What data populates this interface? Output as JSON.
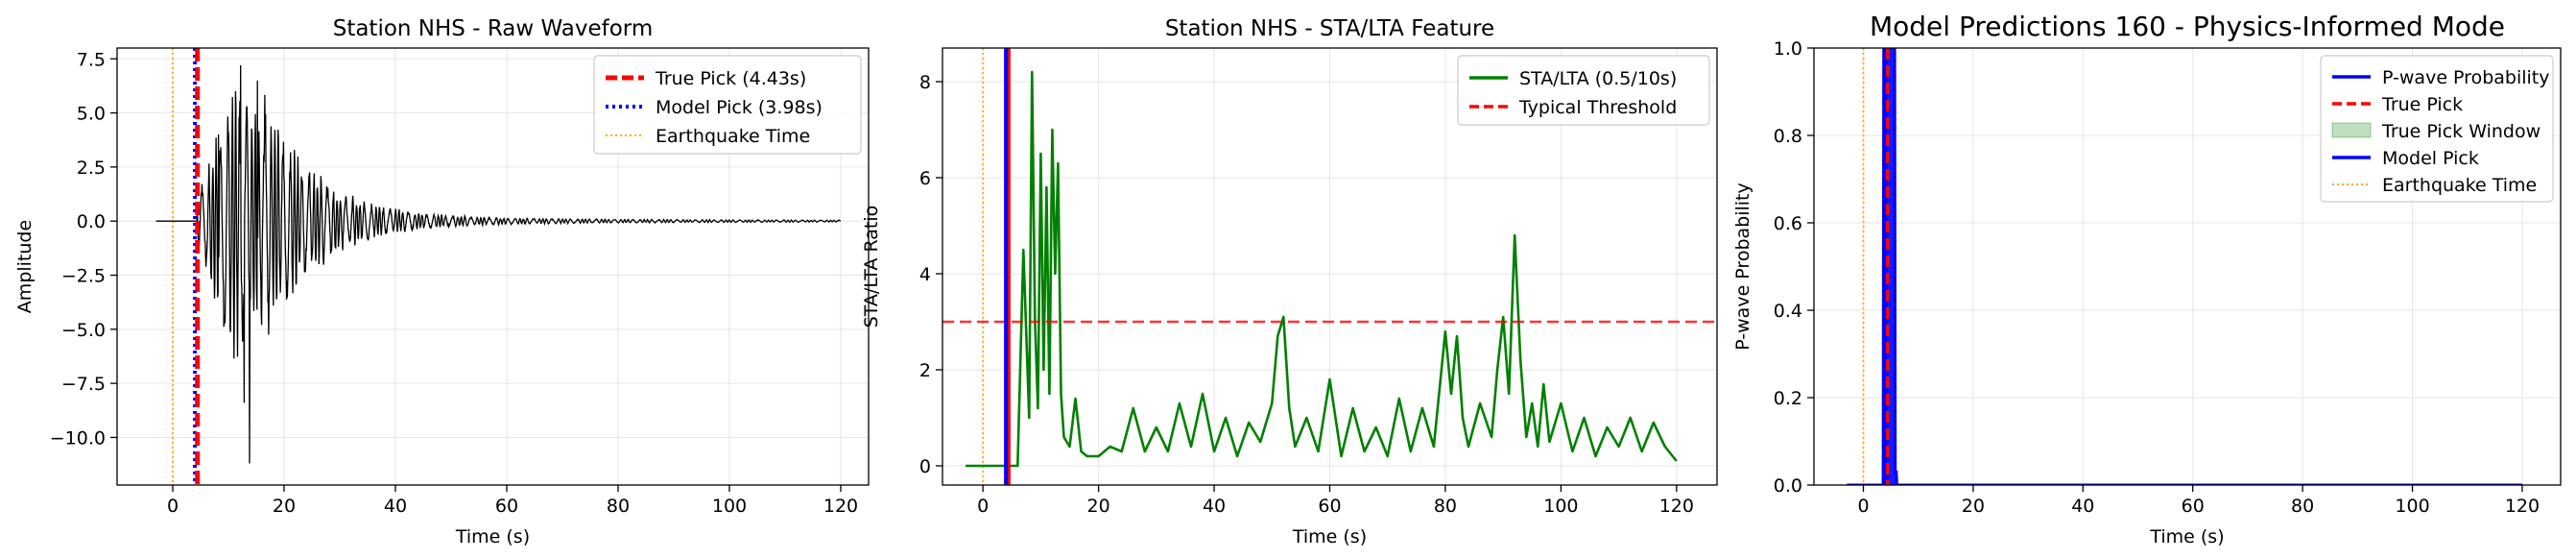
{
  "chart_data": [
    {
      "type": "line",
      "title": "Station NHS - Raw Waveform",
      "xlabel": "Time (s)",
      "ylabel": "Amplitude",
      "xlim": [
        -10,
        125
      ],
      "ylim": [
        -12.2,
        8.0
      ],
      "xticks": [
        0,
        20,
        40,
        60,
        80,
        100,
        120
      ],
      "xtick_labels": [
        "0",
        "20",
        "40",
        "60",
        "80",
        "100",
        "120"
      ],
      "yticks": [
        -10,
        -7.5,
        -5,
        -2.5,
        0,
        2.5,
        5,
        7.5
      ],
      "ytick_labels": [
        "−10.0",
        "−7.5",
        "−5.0",
        "−2.5",
        "0.0",
        "2.5",
        "5.0",
        "7.5"
      ],
      "grid": true,
      "legend_position": "top-right",
      "waveform": {
        "color": "#000000",
        "x_start": -3,
        "x_end": 120,
        "onset": 4.4,
        "peaks": [
          [
            8.2,
            4.0
          ],
          [
            11.3,
            6.0
          ],
          [
            12.2,
            7.2
          ],
          [
            13.8,
            -11.2
          ],
          [
            12.8,
            -8.4
          ],
          [
            15.2,
            6.5
          ],
          [
            16.0,
            -4.8
          ]
        ],
        "note_peaks_are_max_abs_excursion_time_value": true
      },
      "series": [
        {
          "name": "True Pick (4.43s)",
          "x": 4.43,
          "style": "dashed",
          "color": "#ff0000"
        },
        {
          "name": "Model Pick (3.98s)",
          "x": 3.98,
          "style": "dotted",
          "color": "#0000ff"
        },
        {
          "name": "Earthquake Time",
          "x": 0.0,
          "style": "dotted",
          "color": "#ffa500"
        }
      ]
    },
    {
      "type": "line",
      "title": "Station NHS - STA/LTA Feature",
      "xlabel": "Time (s)",
      "ylabel": "STA/LTA Ratio",
      "xlim": [
        -7,
        127
      ],
      "ylim": [
        -0.4,
        8.7
      ],
      "xticks": [
        0,
        20,
        40,
        60,
        80,
        100,
        120
      ],
      "xtick_labels": [
        "0",
        "20",
        "40",
        "60",
        "80",
        "100",
        "120"
      ],
      "yticks": [
        0,
        2,
        4,
        6,
        8
      ],
      "ytick_labels": [
        "0",
        "2",
        "4",
        "6",
        "8"
      ],
      "grid": true,
      "legend_position": "top-right",
      "series": [
        {
          "name": "STA/LTA (0.5/10s)",
          "color": "#008000",
          "x": [
            -3,
            6,
            7,
            8,
            8.5,
            9,
            9.5,
            10,
            10.5,
            11,
            11.5,
            12,
            12.5,
            13,
            13.5,
            14,
            15,
            16,
            17,
            18,
            20,
            22,
            24,
            26,
            28,
            30,
            32,
            34,
            36,
            38,
            40,
            42,
            44,
            46,
            48,
            50,
            51,
            52,
            53,
            54,
            56,
            58,
            60,
            62,
            64,
            66,
            68,
            70,
            72,
            74,
            76,
            78,
            80,
            81,
            82,
            83,
            84,
            86,
            88,
            89,
            90,
            91,
            92,
            93,
            94,
            95,
            96,
            97,
            98,
            100,
            102,
            104,
            106,
            108,
            110,
            112,
            114,
            116,
            118,
            120
          ],
          "y": [
            0.0,
            0.0,
            4.5,
            1.0,
            8.2,
            3.0,
            1.2,
            6.5,
            2.0,
            5.8,
            1.5,
            7.0,
            4.0,
            6.3,
            1.5,
            0.6,
            0.4,
            1.4,
            0.3,
            0.2,
            0.2,
            0.4,
            0.3,
            1.2,
            0.3,
            0.8,
            0.3,
            1.3,
            0.4,
            1.5,
            0.3,
            1.0,
            0.2,
            0.9,
            0.5,
            1.3,
            2.7,
            3.1,
            1.2,
            0.4,
            1.0,
            0.3,
            1.8,
            0.2,
            1.2,
            0.3,
            0.8,
            0.2,
            1.4,
            0.3,
            1.2,
            0.4,
            2.8,
            1.5,
            2.7,
            1.0,
            0.4,
            1.3,
            0.6,
            2.0,
            3.1,
            1.5,
            4.8,
            2.2,
            0.6,
            1.3,
            0.4,
            1.7,
            0.5,
            1.3,
            0.3,
            1.0,
            0.2,
            0.8,
            0.4,
            1.0,
            0.3,
            0.9,
            0.4,
            0.1
          ]
        },
        {
          "name": "Typical Threshold",
          "y_const": 3.0,
          "style": "dashed",
          "color": "#ff0000"
        },
        {
          "name": "",
          "x": 4.43,
          "style": "solid",
          "color": "#ff0000"
        },
        {
          "name": "",
          "x": 3.98,
          "style": "solid",
          "color": "#0000ff"
        },
        {
          "name": "",
          "x": 0.0,
          "style": "dotted",
          "color": "#ffa500"
        }
      ]
    },
    {
      "type": "line",
      "title": "Model Predictions 160 - Physics-Informed Mode",
      "xlabel": "Time (s)",
      "ylabel": "P-wave Probability",
      "xlim": [
        -9,
        127
      ],
      "ylim": [
        0.0,
        1.0
      ],
      "xticks": [
        0,
        20,
        40,
        60,
        80,
        100,
        120
      ],
      "xtick_labels": [
        "0",
        "20",
        "40",
        "60",
        "80",
        "100",
        "120"
      ],
      "yticks": [
        0.0,
        0.2,
        0.4,
        0.6,
        0.8,
        1.0
      ],
      "ytick_labels": [
        "0.0",
        "0.2",
        "0.4",
        "0.6",
        "0.8",
        "1.0"
      ],
      "grid": true,
      "legend_position": "top-right",
      "series": [
        {
          "name": "P-wave Probability",
          "color": "#0000ff",
          "style": "solid",
          "x": [
            -3,
            3.6,
            3.7,
            5.7,
            5.8,
            6.0,
            6.1,
            120
          ],
          "y": [
            0.0,
            0.0,
            1.0,
            1.0,
            0.03,
            0.03,
            0.0,
            0.0
          ]
        },
        {
          "name": "True Pick",
          "x": 4.43,
          "style": "dashed",
          "color": "#ff0000"
        },
        {
          "name": "True Pick Window",
          "x_range": [
            3.93,
            4.93
          ],
          "color": "#008000",
          "style": "fill"
        },
        {
          "name": "Model Pick",
          "x": 3.98,
          "style": "solid",
          "color": "#0000ff"
        },
        {
          "name": "Earthquake Time",
          "x": 0.0,
          "style": "dotted",
          "color": "#ffa500"
        }
      ]
    }
  ]
}
